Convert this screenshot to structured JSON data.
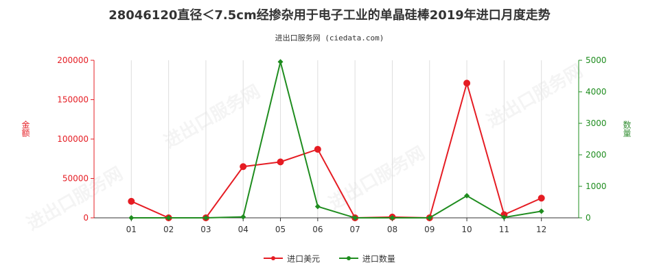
{
  "title": "28046120直径＜7.5cm经掺杂用于电子工业的单晶硅棒2019年进口月度走势",
  "subtitle": "进出口服务网 (ciedata.com)",
  "chart_data": {
    "type": "line",
    "categories": [
      "01",
      "02",
      "03",
      "04",
      "05",
      "06",
      "07",
      "08",
      "09",
      "10",
      "11",
      "12"
    ],
    "series": [
      {
        "name": "进口美元",
        "axis": "left",
        "color": "#e51c23",
        "values": [
          21000,
          0,
          0,
          65000,
          71000,
          87000,
          0,
          1000,
          0,
          171000,
          4000,
          25000
        ]
      },
      {
        "name": "进口数量",
        "axis": "right",
        "color": "#1e8c1e",
        "values": [
          0,
          0,
          0,
          30,
          4950,
          360,
          0,
          0,
          0,
          700,
          15,
          210
        ]
      }
    ],
    "y_left": {
      "label": "金额",
      "ylim": [
        0,
        200000
      ],
      "ticks": [
        0,
        50000,
        100000,
        150000,
        200000
      ]
    },
    "y_right": {
      "label": "数量",
      "ylim": [
        0,
        5000
      ],
      "ticks": [
        0,
        1000,
        2000,
        3000,
        4000,
        5000
      ]
    },
    "grid": "vertical",
    "legend_position": "bottom"
  },
  "watermark_text": "进出口服务网"
}
